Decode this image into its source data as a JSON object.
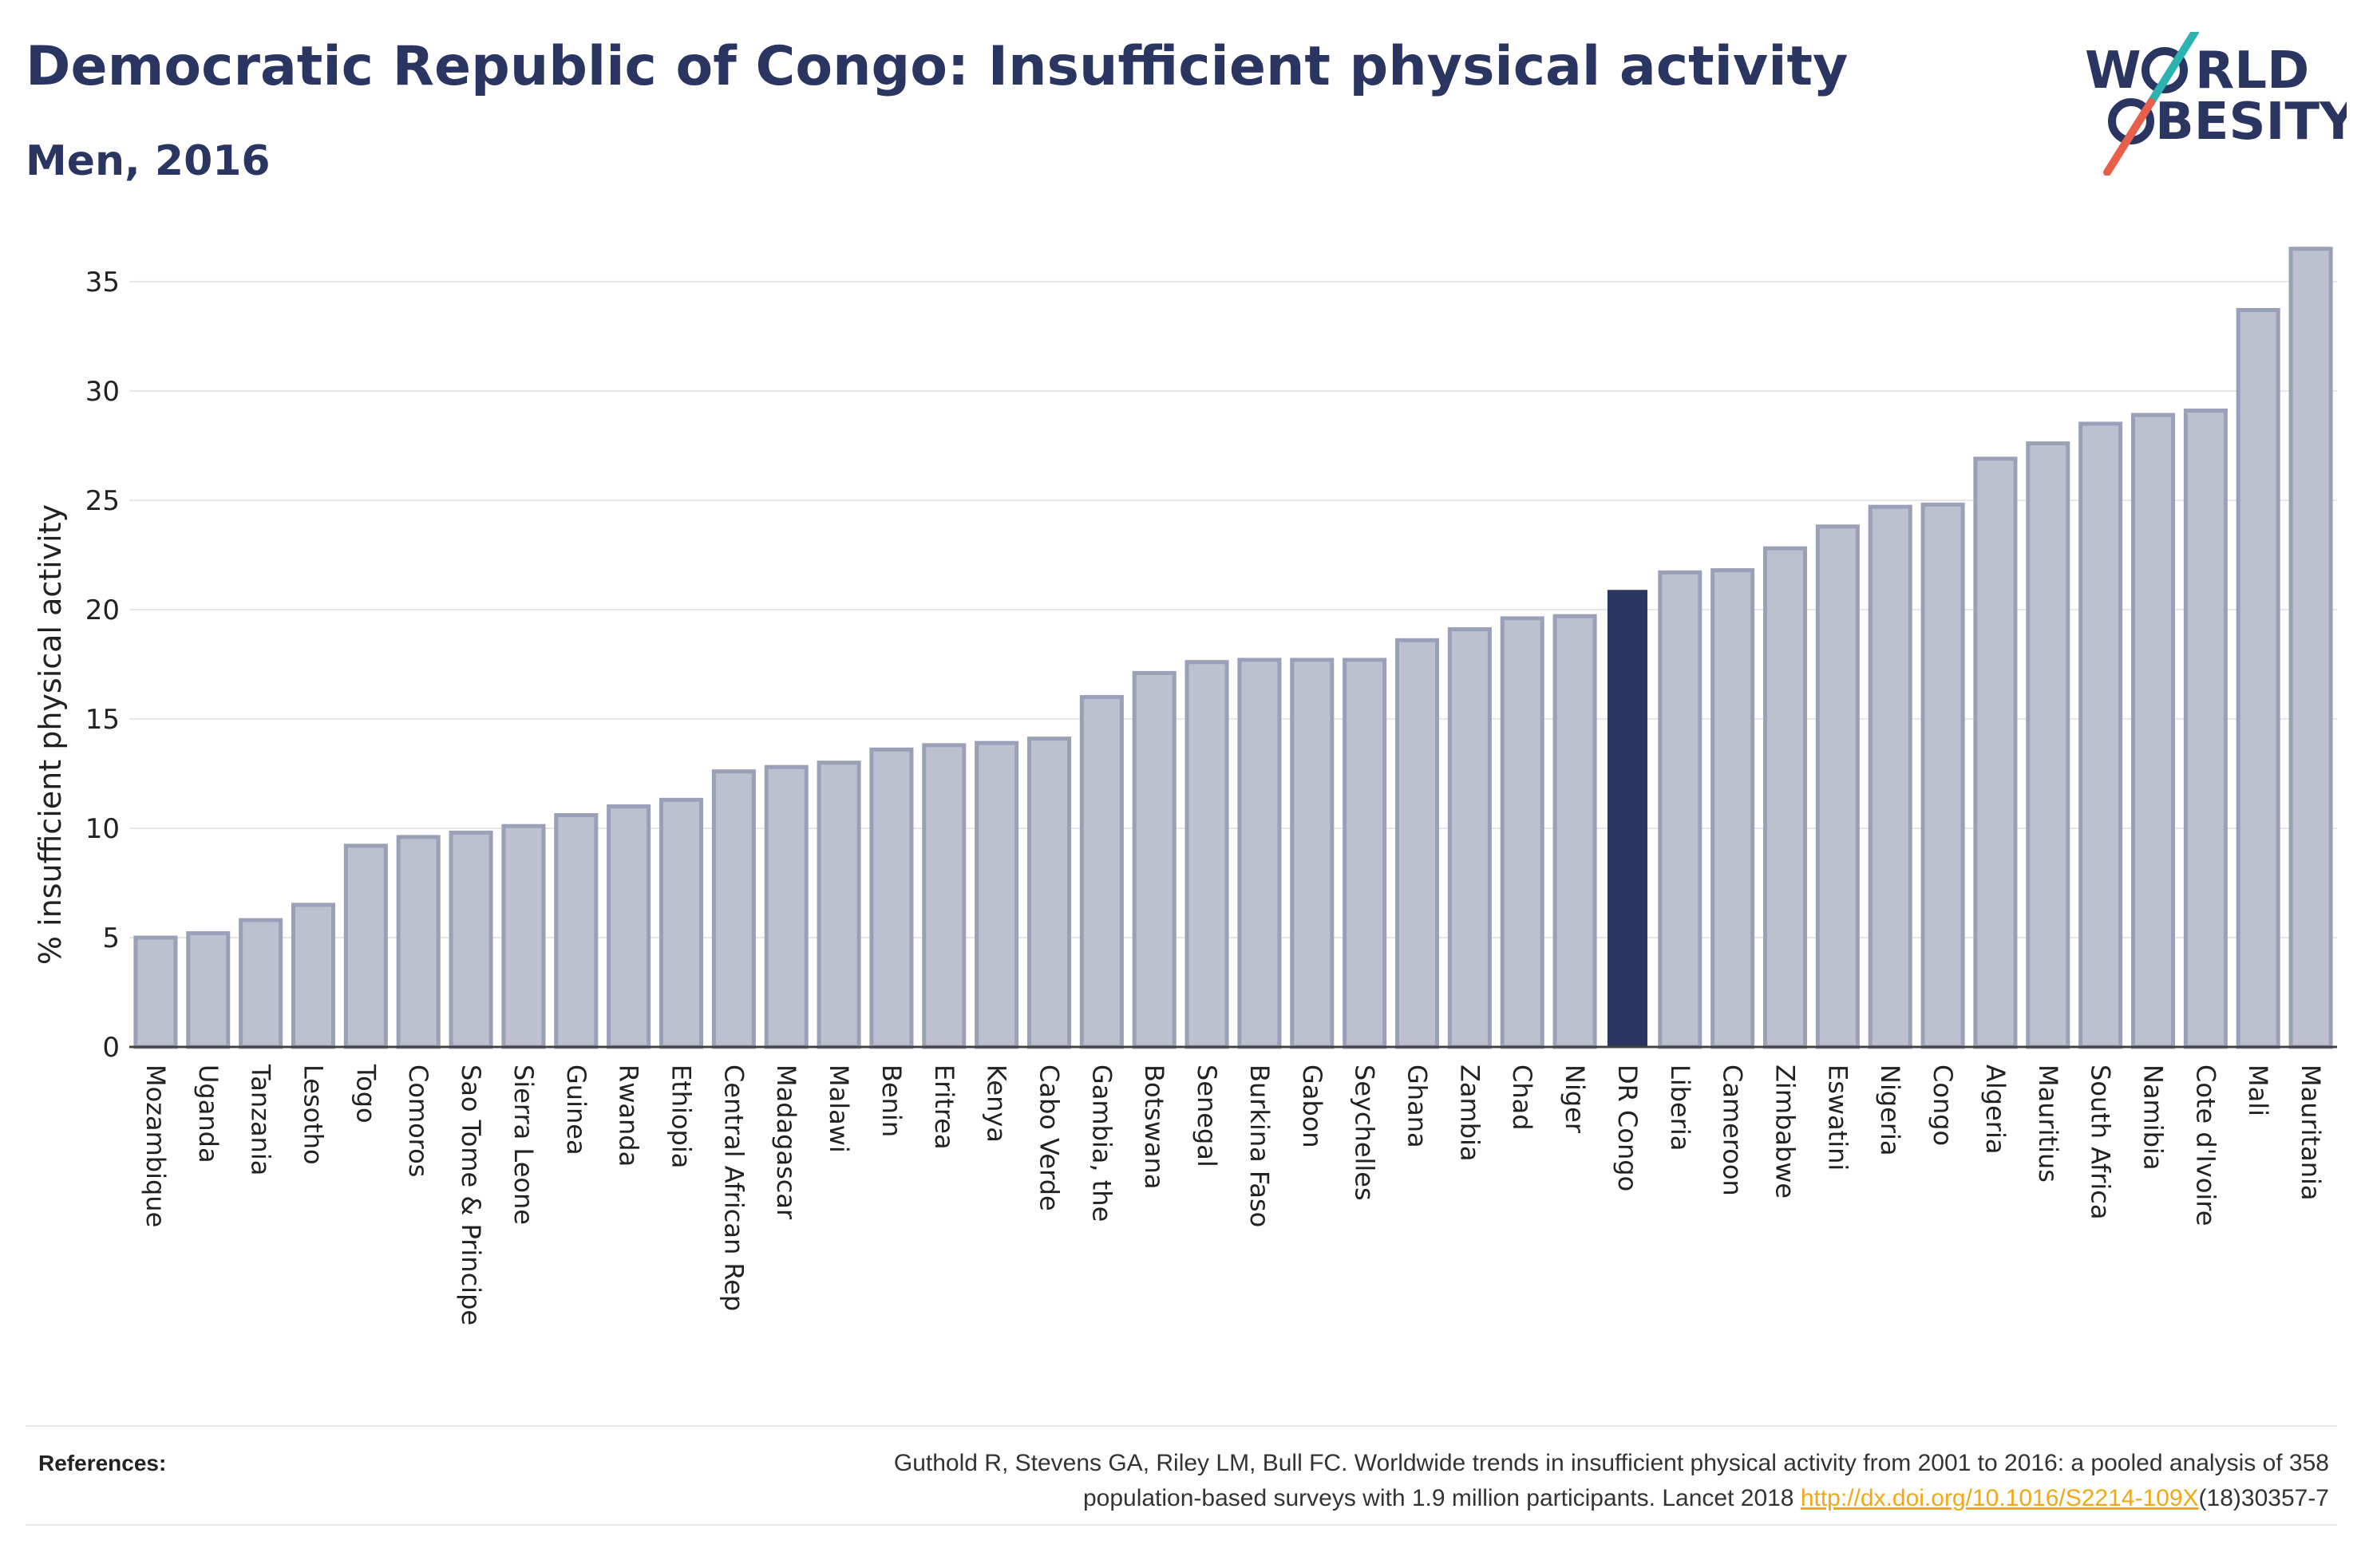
{
  "header": {
    "title": "Democratic Republic of Congo: Insufficient physical activity",
    "subtitle": "Men, 2016"
  },
  "logo": {
    "line1_prefix": "W",
    "line1_suffix": "RLD",
    "line2_suffix": "BESITY",
    "colors": {
      "text": "#2b3562",
      "slash_top": "#2ab3b0",
      "slash_bottom": "#e8604c"
    }
  },
  "colors": {
    "bar_fill": "#bcc0cf",
    "bar_stroke": "#9aa0b8",
    "highlight": "#2b3562",
    "grid": "#e6e6e6",
    "axis": "#444444"
  },
  "chart_data": {
    "type": "bar",
    "title": "Democratic Republic of Congo: Insufficient physical activity",
    "subtitle": "Men, 2016",
    "xlabel": "",
    "ylabel": "% insufficient physical activity",
    "ylim": [
      0,
      36.6
    ],
    "yticks": [
      0,
      5,
      10,
      15,
      20,
      25,
      30,
      35
    ],
    "grid": true,
    "highlight_category": "DR Congo",
    "categories": [
      "Mozambique",
      "Uganda",
      "Tanzania",
      "Lesotho",
      "Togo",
      "Comoros",
      "Sao Tome & Principe",
      "Sierra Leone",
      "Guinea",
      "Rwanda",
      "Ethiopia",
      "Central African Rep",
      "Madagascar",
      "Malawi",
      "Benin",
      "Eritrea",
      "Kenya",
      "Cabo Verde",
      "Gambia, the",
      "Botswana",
      "Senegal",
      "Burkina Faso",
      "Gabon",
      "Seychelles",
      "Ghana",
      "Zambia",
      "Chad",
      "Niger",
      "DR Congo",
      "Liberia",
      "Cameroon",
      "Zimbabwe",
      "Eswatini",
      "Nigeria",
      "Congo",
      "Algeria",
      "Mauritius",
      "South Africa",
      "Namibia",
      "Cote d'Ivoire",
      "Mali",
      "Mauritania"
    ],
    "values": [
      5.0,
      5.2,
      5.8,
      6.5,
      9.2,
      9.6,
      9.8,
      10.1,
      10.6,
      11.0,
      11.3,
      12.6,
      12.8,
      13.0,
      13.6,
      13.8,
      13.9,
      14.1,
      16.0,
      17.1,
      17.6,
      17.7,
      17.7,
      17.7,
      18.6,
      19.1,
      19.6,
      19.7,
      20.9,
      21.7,
      21.8,
      22.8,
      23.8,
      24.7,
      24.8,
      26.9,
      27.6,
      28.5,
      28.9,
      29.1,
      33.7,
      36.5
    ]
  },
  "footer": {
    "references_label": "References:",
    "reference_text_1": "Guthold R, Stevens GA, Riley LM, Bull FC. Worldwide trends in insufficient physical activity from 2001 to 2016: a pooled analysis of 358",
    "reference_text_2": "population-based surveys with 1.9 million participants. Lancet 2018 ",
    "reference_link": "http://dx.doi.org/10.1016/S2214-109X",
    "reference_text_3": "(18)30357-7"
  }
}
